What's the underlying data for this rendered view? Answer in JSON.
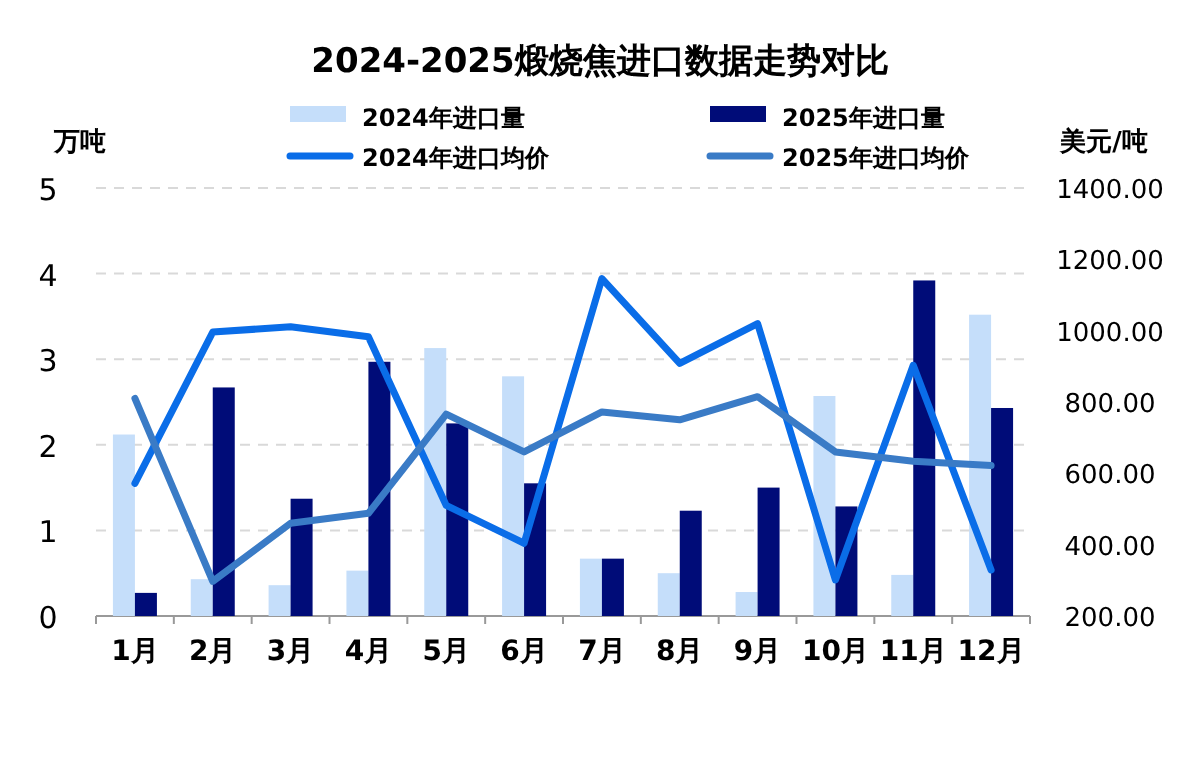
{
  "chart_data": {
    "type": "bar",
    "title": "2024-2025煅烧焦进口数据走势对比",
    "ylabel": "万吨",
    "y2label": "美元/吨",
    "categories": [
      "1月",
      "2月",
      "3月",
      "4月",
      "5月",
      "6月",
      "7月",
      "8月",
      "9月",
      "10月",
      "11月",
      "12月"
    ],
    "series": [
      {
        "name": "2024年进口量",
        "color": "#c5defa",
        "values": [
          2.12,
          0.43,
          0.36,
          0.53,
          3.13,
          2.8,
          0.67,
          0.5,
          0.28,
          2.57,
          0.48,
          3.52
        ]
      },
      {
        "name": "2025年进口量",
        "color": "#000c78",
        "values": [
          0.27,
          2.67,
          1.37,
          2.97,
          2.25,
          1.55,
          0.67,
          1.23,
          1.5,
          1.28,
          3.92,
          2.43
        ]
      },
      {
        "name": "2024年进口均价",
        "type": "line",
        "axis": "y2",
        "color": "#0a6de8",
        "values": [
          572,
          996,
          1011,
          983,
          510,
          404,
          1146,
          908,
          1020,
          301,
          903,
          329
        ]
      },
      {
        "name": "2025年进口均价",
        "type": "line",
        "axis": "y2",
        "color": "#3a7bc6",
        "values": [
          810,
          297,
          460,
          488,
          766,
          660,
          772,
          750,
          815,
          660,
          634,
          622
        ]
      }
    ],
    "ylim": [
      0,
      5
    ],
    "yticks": [
      0,
      1,
      2,
      3,
      4,
      5
    ],
    "y2lim": [
      200,
      1400
    ],
    "y2ticks": [
      {
        "value": 200,
        "label": "200.00"
      },
      {
        "value": 400,
        "label": "400.00"
      },
      {
        "value": 600,
        "label": "600.00"
      },
      {
        "value": 800,
        "label": "800.00"
      },
      {
        "value": 1000,
        "label": "1000.00"
      },
      {
        "value": 1200,
        "label": "1200.00"
      },
      {
        "value": 1400,
        "label": "1400.00"
      }
    ],
    "grid": "y",
    "legend": "top"
  }
}
